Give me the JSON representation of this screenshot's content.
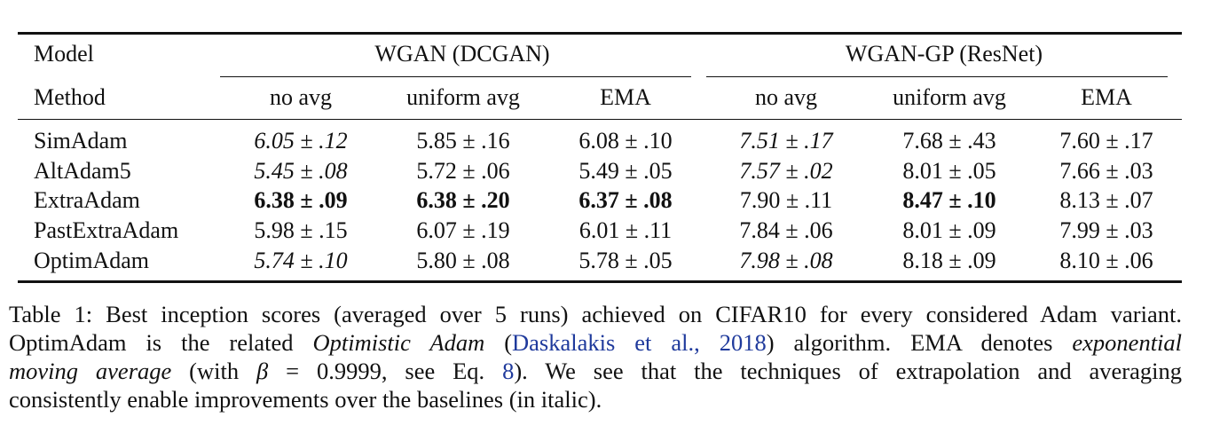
{
  "table": {
    "col_header_model": "Model",
    "col_header_method": "Method",
    "groups": [
      {
        "name": "WGAN (DCGAN)",
        "methods": [
          "no avg",
          "uniform avg",
          "EMA"
        ]
      },
      {
        "name": "WGAN-GP (ResNet)",
        "methods": [
          "no avg",
          "uniform avg",
          "EMA"
        ]
      }
    ],
    "rows": [
      {
        "model": "SimAdam",
        "values": [
          "6.05 ± .12",
          "5.85 ± .16",
          "6.08 ± .10",
          "7.51 ± .17",
          "7.68 ± .43",
          "7.60 ± .17"
        ]
      },
      {
        "model": "AltAdam5",
        "values": [
          "5.45 ± .08",
          "5.72 ± .06",
          "5.49 ± .05",
          "7.57 ± .02",
          "8.01 ± .05",
          "7.66 ± .03"
        ]
      },
      {
        "model": "ExtraAdam",
        "values": [
          "6.38 ± .09",
          "6.38 ± .20",
          "6.37 ± .08",
          "7.90 ± .11",
          "8.47 ± .10",
          "8.13 ± .07"
        ]
      },
      {
        "model": "PastExtraAdam",
        "values": [
          "5.98 ± .15",
          "6.07 ± .19",
          "6.01 ± .11",
          "7.84 ± .06",
          "8.01 ± .09",
          "7.99 ± .03"
        ]
      },
      {
        "model": "OptimAdam",
        "values": [
          "5.74 ± .10",
          "5.80 ± .08",
          "5.78 ± .05",
          "7.98 ± .08",
          "8.18 ± .09",
          "8.10 ± .06"
        ]
      }
    ]
  },
  "caption": {
    "label": "Table 1:",
    "l1": "Best inception scores (averaged over 5 runs) achieved on CIFAR10 for every considered Adam variant.",
    "l2a": "OptimAdam is the related",
    "l2b": "Optimistic Adam",
    "l2c": "(",
    "l2cite": "Daskalakis et al.,",
    "l2year": "2018",
    "l2d": ") algorithm. EMA denotes",
    "l2e": "exponential",
    "l3a": "moving average",
    "l3b": "(with",
    "l3beta": "β",
    "l3c": "= 0.9999, see Eq.",
    "l3ref": "8",
    "l3d": "). We see that the techniques of extrapolation and averaging",
    "l4": "consistently enable improvements over the baselines (in italic)."
  }
}
